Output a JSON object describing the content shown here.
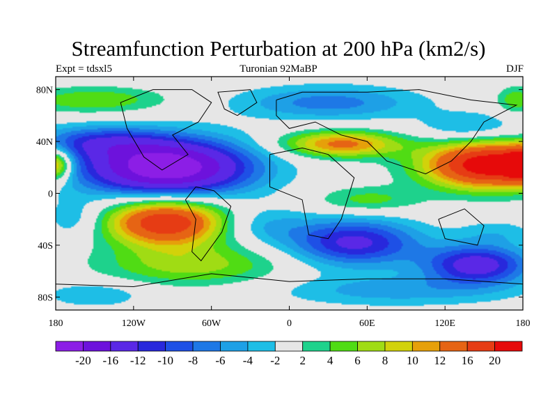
{
  "header": {
    "title": "Streamfunction Perturbation at 200 hPa (km2/s)",
    "left": "Expt = tdsxl5",
    "center": "Turonian  92MaBP",
    "right": "DJF"
  },
  "map": {
    "lon_range": [
      -180,
      180
    ],
    "lat_range": [
      -90,
      90
    ],
    "x_ticks": [
      {
        "value": -180,
        "label": "180"
      },
      {
        "value": -120,
        "label": "120W"
      },
      {
        "value": -60,
        "label": "60W"
      },
      {
        "value": 0,
        "label": "0"
      },
      {
        "value": 60,
        "label": "60E"
      },
      {
        "value": 120,
        "label": "120E"
      },
      {
        "value": 180,
        "label": "180"
      }
    ],
    "y_ticks": [
      {
        "value": 80,
        "label": "80N"
      },
      {
        "value": 40,
        "label": "40N"
      },
      {
        "value": 0,
        "label": "0"
      },
      {
        "value": -40,
        "label": "40S"
      },
      {
        "value": -80,
        "label": "80S"
      }
    ],
    "background_color": "#e6e6e6",
    "anomalies": [
      {
        "lon": -95,
        "lat": 20,
        "rx": 65,
        "ry": 22,
        "amp": -24
      },
      {
        "lon": -150,
        "lat": 40,
        "rx": 50,
        "ry": 12,
        "amp": -8
      },
      {
        "lon": -150,
        "lat": 72,
        "rx": 55,
        "ry": 10,
        "amp": 6
      },
      {
        "lon": -95,
        "lat": -22,
        "rx": 45,
        "ry": 18,
        "amp": 20
      },
      {
        "lon": -75,
        "lat": -55,
        "rx": 70,
        "ry": 16,
        "amp": 7
      },
      {
        "lon": -165,
        "lat": -20,
        "rx": 22,
        "ry": 15,
        "amp": -4
      },
      {
        "lon": -180,
        "lat": 22,
        "rx": 12,
        "ry": 12,
        "amp": 14
      },
      {
        "lon": 180,
        "lat": 22,
        "rx": 12,
        "ry": 12,
        "amp": 14
      },
      {
        "lon": 155,
        "lat": 22,
        "rx": 50,
        "ry": 18,
        "amp": 24
      },
      {
        "lon": 140,
        "lat": 50,
        "rx": 40,
        "ry": 12,
        "amp": -5
      },
      {
        "lon": 30,
        "lat": 70,
        "rx": 70,
        "ry": 13,
        "amp": -7
      },
      {
        "lon": 40,
        "lat": 38,
        "rx": 45,
        "ry": 10,
        "amp": 13
      },
      {
        "lon": 50,
        "lat": -38,
        "rx": 50,
        "ry": 18,
        "amp": -13
      },
      {
        "lon": 145,
        "lat": -55,
        "rx": 40,
        "ry": 15,
        "amp": -14
      },
      {
        "lon": 60,
        "lat": -5,
        "rx": 40,
        "ry": 10,
        "amp": 5
      },
      {
        "lon": -20,
        "lat": -25,
        "rx": 35,
        "ry": 14,
        "amp": -4
      },
      {
        "lon": 80,
        "lat": -75,
        "rx": 90,
        "ry": 12,
        "amp": -5
      },
      {
        "lon": -150,
        "lat": -78,
        "rx": 40,
        "ry": 10,
        "amp": -4
      },
      {
        "lon": 175,
        "lat": 72,
        "rx": 15,
        "ry": 10,
        "amp": 6
      },
      {
        "lon": 160,
        "lat": -30,
        "rx": 30,
        "ry": 10,
        "amp": -3
      }
    ],
    "coastlines": [
      [
        [
          -105,
          80
        ],
        [
          -75,
          80
        ],
        [
          -60,
          70
        ],
        [
          -70,
          55
        ],
        [
          -90,
          45
        ],
        [
          -78,
          30
        ],
        [
          -98,
          18
        ],
        [
          -112,
          28
        ],
        [
          -125,
          50
        ],
        [
          -130,
          70
        ],
        [
          -105,
          80
        ]
      ],
      [
        [
          -72,
          5
        ],
        [
          -58,
          2
        ],
        [
          -45,
          -10
        ],
        [
          -52,
          -30
        ],
        [
          -68,
          -52
        ],
        [
          -75,
          -45
        ],
        [
          -72,
          -20
        ],
        [
          -80,
          -5
        ],
        [
          -72,
          5
        ]
      ],
      [
        [
          -10,
          72
        ],
        [
          10,
          78
        ],
        [
          60,
          78
        ],
        [
          100,
          80
        ],
        [
          140,
          72
        ],
        [
          175,
          68
        ],
        [
          150,
          55
        ],
        [
          140,
          40
        ],
        [
          125,
          25
        ],
        [
          105,
          15
        ],
        [
          90,
          20
        ],
        [
          75,
          25
        ],
        [
          60,
          40
        ],
        [
          40,
          45
        ],
        [
          20,
          55
        ],
        [
          0,
          50
        ],
        [
          -10,
          60
        ],
        [
          -10,
          72
        ]
      ],
      [
        [
          -15,
          30
        ],
        [
          10,
          35
        ],
        [
          30,
          30
        ],
        [
          50,
          12
        ],
        [
          40,
          -20
        ],
        [
          30,
          -35
        ],
        [
          15,
          -32
        ],
        [
          10,
          -5
        ],
        [
          -15,
          5
        ],
        [
          -15,
          30
        ]
      ],
      [
        [
          115,
          -20
        ],
        [
          135,
          -12
        ],
        [
          150,
          -25
        ],
        [
          145,
          -40
        ],
        [
          120,
          -35
        ],
        [
          115,
          -20
        ]
      ],
      [
        [
          -40,
          60
        ],
        [
          -25,
          70
        ],
        [
          -30,
          80
        ],
        [
          -55,
          78
        ],
        [
          -50,
          65
        ],
        [
          -40,
          60
        ]
      ],
      [
        [
          -180,
          -70
        ],
        [
          -120,
          -72
        ],
        [
          -60,
          -62
        ],
        [
          0,
          -68
        ],
        [
          60,
          -66
        ],
        [
          120,
          -66
        ],
        [
          180,
          -70
        ]
      ]
    ]
  },
  "colorbar": {
    "colors": [
      "#8c1ee6",
      "#6d12dc",
      "#5a28e6",
      "#2828dc",
      "#1e50e6",
      "#1e78e6",
      "#1ea0e6",
      "#1ebee6",
      "#e6e6e6",
      "#1ed28c",
      "#50dc14",
      "#a0dc14",
      "#d2d20a",
      "#e6a00a",
      "#e66414",
      "#e63c14",
      "#e60a0a"
    ],
    "labels": [
      "-20",
      "-16",
      "-12",
      "-10",
      "-8",
      "-6",
      "-4",
      "-2",
      "2",
      "4",
      "6",
      "8",
      "10",
      "12",
      "16",
      "20"
    ],
    "thresholds": [
      -20,
      -16,
      -12,
      -10,
      -8,
      -6,
      -4,
      -2,
      2,
      4,
      6,
      8,
      10,
      12,
      16,
      20
    ]
  }
}
